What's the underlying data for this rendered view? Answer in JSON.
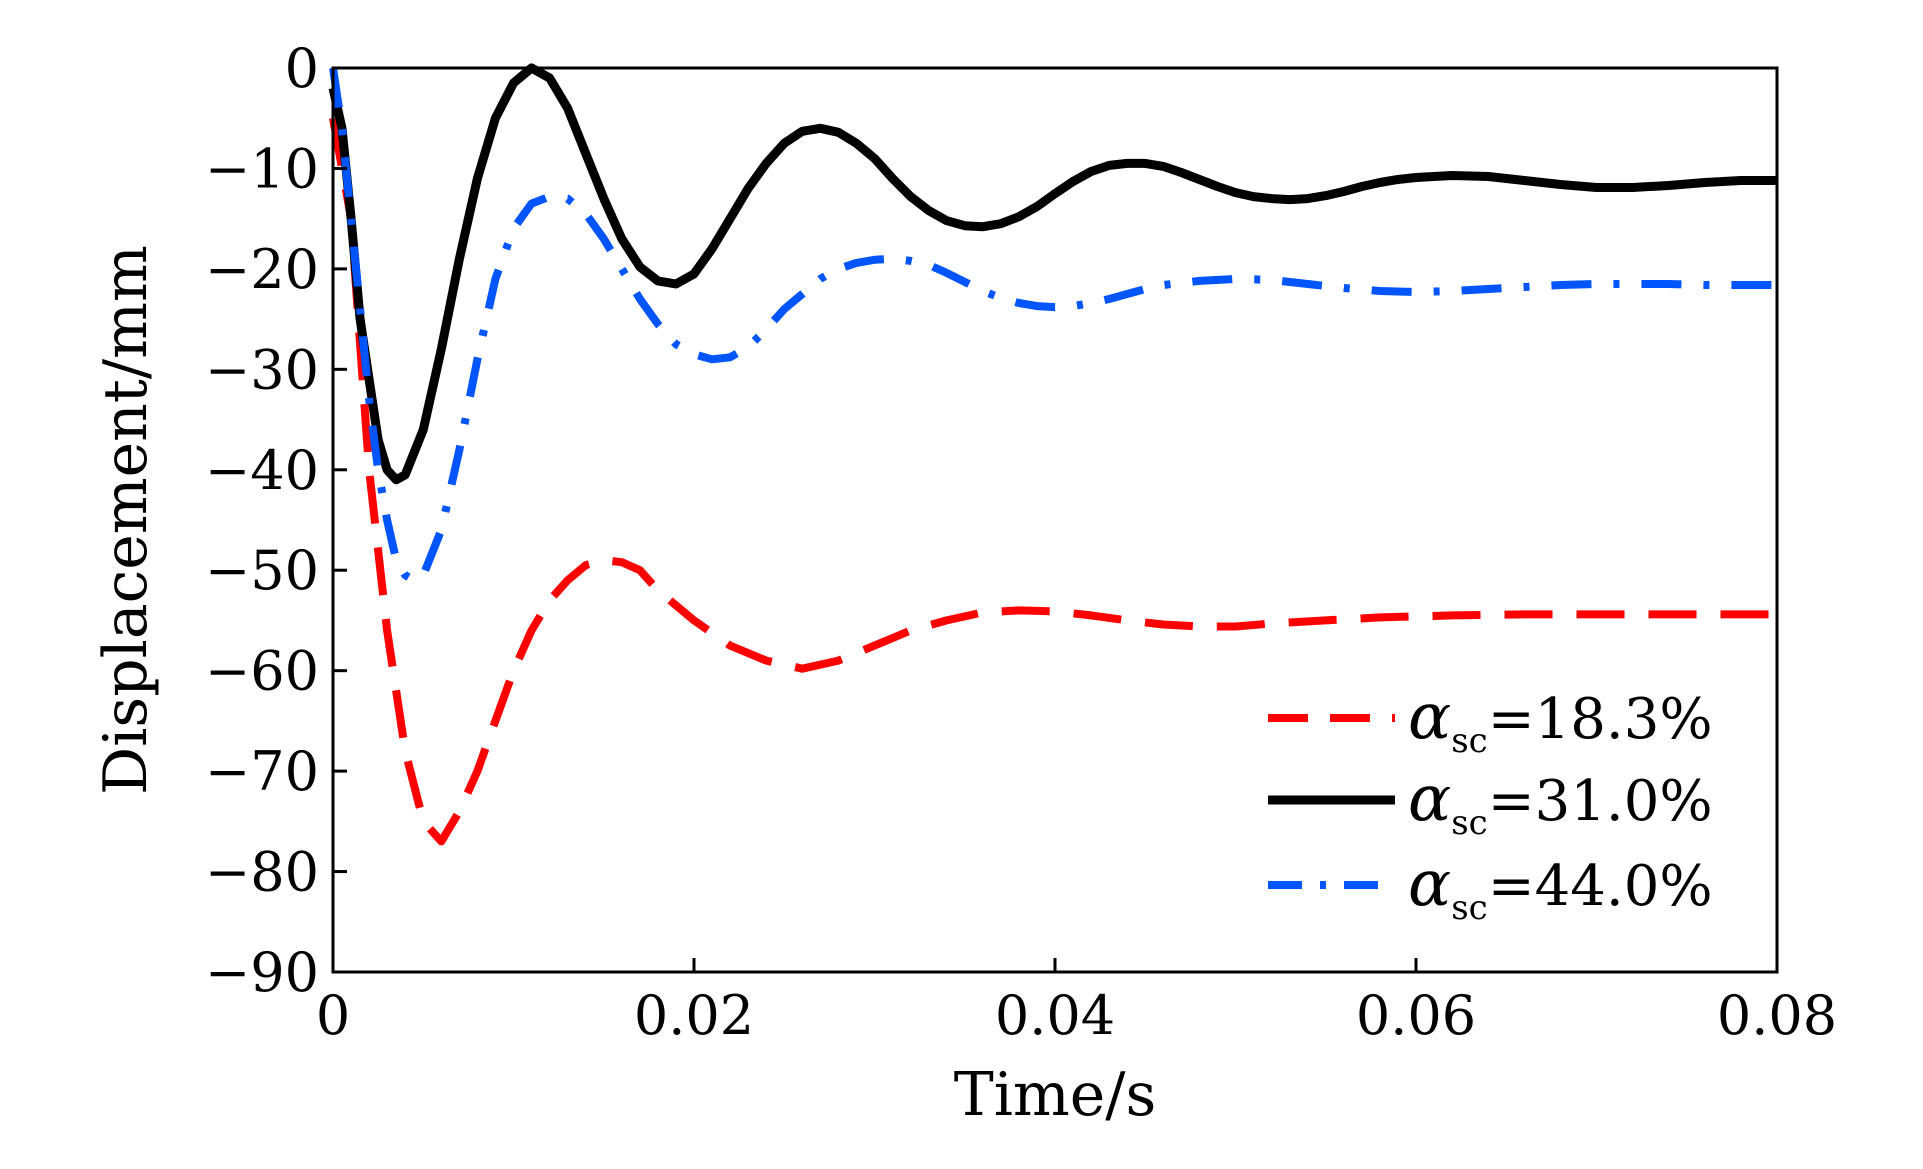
{
  "chart_data": {
    "type": "line",
    "title": "",
    "xlabel": "Time/s",
    "ylabel": "Displacement/mm",
    "xlim": [
      0,
      0.08
    ],
    "ylim": [
      -90,
      0
    ],
    "x_ticks": [
      0,
      0.02,
      0.04,
      0.06,
      0.08
    ],
    "x_tick_labels": [
      "0",
      "0.02",
      "0.04",
      "0.06",
      "0.08"
    ],
    "y_ticks": [
      0,
      -10,
      -20,
      -30,
      -40,
      -50,
      -60,
      -70,
      -80,
      -90
    ],
    "y_tick_labels": [
      "0",
      "−10",
      "−20",
      "−30",
      "−40",
      "−50",
      "−60",
      "−70",
      "−80",
      "−90"
    ],
    "grid": false,
    "legend_position": "bottom-right",
    "series": [
      {
        "name": "αsc=18.3%",
        "legend_symbol": "α",
        "legend_subscript": "sc",
        "legend_value": "=18.3%",
        "color": "#ff0000",
        "style": "dashed",
        "points": [
          [
            0,
            -5
          ],
          [
            0.001,
            -15
          ],
          [
            0.002,
            -40
          ],
          [
            0.003,
            -56
          ],
          [
            0.004,
            -68
          ],
          [
            0.005,
            -75
          ],
          [
            0.006,
            -77
          ],
          [
            0.007,
            -74
          ],
          [
            0.008,
            -70
          ],
          [
            0.009,
            -65
          ],
          [
            0.01,
            -60
          ],
          [
            0.011,
            -56
          ],
          [
            0.012,
            -53
          ],
          [
            0.013,
            -51
          ],
          [
            0.014,
            -49.5
          ],
          [
            0.015,
            -49
          ],
          [
            0.016,
            -49.2
          ],
          [
            0.017,
            -50
          ],
          [
            0.018,
            -52
          ],
          [
            0.02,
            -55
          ],
          [
            0.022,
            -57.5
          ],
          [
            0.024,
            -59
          ],
          [
            0.026,
            -59.8
          ],
          [
            0.028,
            -59
          ],
          [
            0.03,
            -57.5
          ],
          [
            0.032,
            -56
          ],
          [
            0.034,
            -55
          ],
          [
            0.036,
            -54.2
          ],
          [
            0.038,
            -54
          ],
          [
            0.04,
            -54.1
          ],
          [
            0.042,
            -54.5
          ],
          [
            0.044,
            -55
          ],
          [
            0.046,
            -55.4
          ],
          [
            0.048,
            -55.6
          ],
          [
            0.05,
            -55.6
          ],
          [
            0.052,
            -55.3
          ],
          [
            0.055,
            -55
          ],
          [
            0.058,
            -54.7
          ],
          [
            0.062,
            -54.5
          ],
          [
            0.066,
            -54.4
          ],
          [
            0.07,
            -54.4
          ],
          [
            0.075,
            -54.4
          ],
          [
            0.08,
            -54.4
          ]
        ]
      },
      {
        "name": "αsc=31.0%",
        "legend_symbol": "α",
        "legend_subscript": "sc",
        "legend_value": "=31.0%",
        "color": "#000000",
        "style": "solid",
        "points": [
          [
            0,
            -2
          ],
          [
            0.0005,
            -6
          ],
          [
            0.001,
            -15
          ],
          [
            0.0015,
            -25
          ],
          [
            0.002,
            -31
          ],
          [
            0.0025,
            -37
          ],
          [
            0.003,
            -40
          ],
          [
            0.0035,
            -41
          ],
          [
            0.004,
            -40.5
          ],
          [
            0.005,
            -36
          ],
          [
            0.006,
            -28
          ],
          [
            0.007,
            -19
          ],
          [
            0.008,
            -11
          ],
          [
            0.009,
            -5
          ],
          [
            0.01,
            -1.5
          ],
          [
            0.011,
            0
          ],
          [
            0.012,
            -1
          ],
          [
            0.013,
            -4
          ],
          [
            0.014,
            -8.5
          ],
          [
            0.015,
            -13
          ],
          [
            0.016,
            -17
          ],
          [
            0.017,
            -19.8
          ],
          [
            0.018,
            -21.2
          ],
          [
            0.019,
            -21.5
          ],
          [
            0.02,
            -20.5
          ],
          [
            0.021,
            -18
          ],
          [
            0.022,
            -15
          ],
          [
            0.023,
            -12
          ],
          [
            0.024,
            -9.5
          ],
          [
            0.025,
            -7.5
          ],
          [
            0.026,
            -6.3
          ],
          [
            0.027,
            -6
          ],
          [
            0.028,
            -6.4
          ],
          [
            0.029,
            -7.5
          ],
          [
            0.03,
            -9
          ],
          [
            0.031,
            -11
          ],
          [
            0.032,
            -12.8
          ],
          [
            0.033,
            -14.2
          ],
          [
            0.034,
            -15.2
          ],
          [
            0.035,
            -15.7
          ],
          [
            0.036,
            -15.8
          ],
          [
            0.037,
            -15.5
          ],
          [
            0.038,
            -14.8
          ],
          [
            0.039,
            -13.8
          ],
          [
            0.04,
            -12.5
          ],
          [
            0.041,
            -11.3
          ],
          [
            0.042,
            -10.3
          ],
          [
            0.043,
            -9.7
          ],
          [
            0.044,
            -9.5
          ],
          [
            0.045,
            -9.5
          ],
          [
            0.046,
            -9.8
          ],
          [
            0.047,
            -10.4
          ],
          [
            0.048,
            -11.1
          ],
          [
            0.049,
            -11.8
          ],
          [
            0.05,
            -12.4
          ],
          [
            0.051,
            -12.8
          ],
          [
            0.052,
            -13
          ],
          [
            0.053,
            -13.1
          ],
          [
            0.054,
            -13
          ],
          [
            0.055,
            -12.7
          ],
          [
            0.056,
            -12.3
          ],
          [
            0.057,
            -11.8
          ],
          [
            0.058,
            -11.4
          ],
          [
            0.059,
            -11.1
          ],
          [
            0.06,
            -10.9
          ],
          [
            0.062,
            -10.7
          ],
          [
            0.064,
            -10.8
          ],
          [
            0.066,
            -11.2
          ],
          [
            0.068,
            -11.6
          ],
          [
            0.07,
            -11.9
          ],
          [
            0.072,
            -11.9
          ],
          [
            0.074,
            -11.7
          ],
          [
            0.076,
            -11.4
          ],
          [
            0.078,
            -11.2
          ],
          [
            0.08,
            -11.2
          ]
        ]
      },
      {
        "name": "αsc=44.0%",
        "legend_symbol": "α",
        "legend_subscript": "sc",
        "legend_value": "=44.0%",
        "color": "#0055ff",
        "style": "dashdot",
        "points": [
          [
            0,
            0
          ],
          [
            0.0005,
            -6
          ],
          [
            0.001,
            -15
          ],
          [
            0.0015,
            -24
          ],
          [
            0.002,
            -33
          ],
          [
            0.0025,
            -40
          ],
          [
            0.003,
            -45
          ],
          [
            0.0035,
            -49
          ],
          [
            0.004,
            -50.5
          ],
          [
            0.0045,
            -51
          ],
          [
            0.005,
            -50.5
          ],
          [
            0.006,
            -46
          ],
          [
            0.007,
            -38
          ],
          [
            0.008,
            -29
          ],
          [
            0.009,
            -21
          ],
          [
            0.01,
            -16
          ],
          [
            0.011,
            -13.5
          ],
          [
            0.012,
            -12.8
          ],
          [
            0.013,
            -13
          ],
          [
            0.014,
            -14.5
          ],
          [
            0.015,
            -17
          ],
          [
            0.016,
            -20
          ],
          [
            0.017,
            -23
          ],
          [
            0.018,
            -25.5
          ],
          [
            0.019,
            -27.5
          ],
          [
            0.02,
            -28.5
          ],
          [
            0.021,
            -29
          ],
          [
            0.022,
            -28.8
          ],
          [
            0.023,
            -27.8
          ],
          [
            0.024,
            -26
          ],
          [
            0.025,
            -24
          ],
          [
            0.026,
            -22.5
          ],
          [
            0.027,
            -21
          ],
          [
            0.028,
            -20
          ],
          [
            0.029,
            -19.4
          ],
          [
            0.03,
            -19.1
          ],
          [
            0.031,
            -19
          ],
          [
            0.032,
            -19.2
          ],
          [
            0.033,
            -19.6
          ],
          [
            0.034,
            -20.4
          ],
          [
            0.035,
            -21.3
          ],
          [
            0.036,
            -22.2
          ],
          [
            0.037,
            -22.9
          ],
          [
            0.038,
            -23.4
          ],
          [
            0.039,
            -23.7
          ],
          [
            0.04,
            -23.8
          ],
          [
            0.041,
            -23.7
          ],
          [
            0.042,
            -23.4
          ],
          [
            0.043,
            -23
          ],
          [
            0.044,
            -22.5
          ],
          [
            0.045,
            -22
          ],
          [
            0.046,
            -21.6
          ],
          [
            0.048,
            -21.2
          ],
          [
            0.05,
            -21
          ],
          [
            0.052,
            -21.1
          ],
          [
            0.054,
            -21.5
          ],
          [
            0.056,
            -21.9
          ],
          [
            0.058,
            -22.2
          ],
          [
            0.06,
            -22.3
          ],
          [
            0.062,
            -22.2
          ],
          [
            0.064,
            -22
          ],
          [
            0.066,
            -21.8
          ],
          [
            0.068,
            -21.6
          ],
          [
            0.07,
            -21.5
          ],
          [
            0.072,
            -21.5
          ],
          [
            0.074,
            -21.5
          ],
          [
            0.076,
            -21.6
          ],
          [
            0.078,
            -21.6
          ],
          [
            0.08,
            -21.6
          ]
        ]
      }
    ]
  }
}
